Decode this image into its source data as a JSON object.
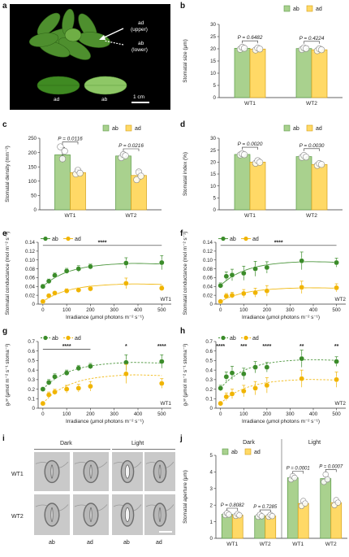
{
  "colors": {
    "ab": "#a9d18e",
    "ab_edge": "#5a9a46",
    "ad": "#ffd966",
    "ad_edge": "#d4a017",
    "line_ab": "#3b8c2a",
    "line_ad": "#f0b400",
    "text": "#222222"
  },
  "panel_letters": {
    "a": "a",
    "b": "b",
    "c": "c",
    "d": "d",
    "e": "e",
    "f": "f",
    "g": "g",
    "h": "h",
    "i": "i",
    "j": "j"
  },
  "photo": {
    "upper_label": "ad\n(upper)",
    "upper_l1": "ad",
    "upper_l2": "(upper)",
    "lower_l1": "ab",
    "lower_l2": "(lower)",
    "leaf_left": "ad",
    "leaf_right": "ab",
    "scale": "1 cm"
  },
  "micrographs": {
    "dark": "Dark",
    "light": "Light",
    "row1": "WT1",
    "row2": "WT2",
    "col_ab": "ab",
    "col_ad": "ad"
  },
  "chart_data": [
    {
      "id": "b",
      "type": "bar",
      "categories": [
        "WT1",
        "WT2"
      ],
      "series": [
        {
          "name": "ab",
          "values": [
            20.2,
            20.1
          ]
        },
        {
          "name": "ad",
          "values": [
            19.9,
            19.6
          ]
        }
      ],
      "errors": [
        [
          0.4,
          0.3
        ],
        [
          0.4,
          0.4
        ]
      ],
      "points": [
        [
          [
            19.8,
            20.6,
            20.2
          ],
          [
            19.7,
            20.4,
            20.1
          ]
        ],
        [
          [
            19.5,
            20.3,
            19.9
          ],
          [
            19.2,
            20.0,
            19.6
          ]
        ]
      ],
      "ylabel": "Stomatal size (μm)",
      "ylim": [
        0,
        30
      ],
      "yticks": [
        0,
        5,
        10,
        15,
        20,
        25,
        30
      ],
      "pvalues": [
        "P = 0.6482",
        "P = 0.4224"
      ],
      "legend": [
        "ab",
        "ad"
      ]
    },
    {
      "id": "c",
      "type": "bar",
      "categories": [
        "WT1",
        "WT2"
      ],
      "series": [
        {
          "name": "ab",
          "values": [
            192,
            188
          ]
        },
        {
          "name": "ad",
          "values": [
            130,
            120
          ]
        }
      ],
      "errors": [
        [
          26,
          8
        ],
        [
          10,
          18
        ]
      ],
      "points": [
        [
          [
            220,
            178,
            205
          ],
          [
            182,
            193,
            189
          ]
        ],
        [
          [
            125,
            138,
            128
          ],
          [
            105,
            132,
            118
          ]
        ]
      ],
      "ylabel": "Stomatal density (mm⁻²)",
      "ylim": [
        0,
        250
      ],
      "yticks": [
        0,
        50,
        100,
        150,
        200,
        250
      ],
      "pvalues": [
        "P = 0.0116",
        "P = 0.0216"
      ],
      "legend": [
        "ab",
        "ad"
      ]
    },
    {
      "id": "d",
      "type": "bar",
      "categories": [
        "WT1",
        "WT2"
      ],
      "series": [
        {
          "name": "ab",
          "values": [
            23.2,
            22.3
          ]
        },
        {
          "name": "ad",
          "values": [
            20.0,
            19.0
          ]
        }
      ],
      "errors": [
        [
          0.3,
          0.6
        ],
        [
          0.8,
          0.5
        ]
      ],
      "points": [
        [
          [
            23.0,
            23.5,
            23.1
          ],
          [
            22.0,
            22.8,
            22.1
          ]
        ],
        [
          [
            19.5,
            20.6,
            19.9
          ],
          [
            18.6,
            19.4,
            19.0
          ]
        ]
      ],
      "ylabel": "Stomatal index (%)",
      "ylim": [
        0,
        30
      ],
      "yticks": [
        0,
        5,
        10,
        15,
        20,
        25,
        30
      ],
      "pvalues": [
        "P = 0.0020",
        "P = 0.0030"
      ],
      "legend": [
        "ab",
        "ad"
      ]
    },
    {
      "id": "e",
      "type": "scatter",
      "x": [
        0,
        25,
        50,
        100,
        150,
        200,
        350,
        500
      ],
      "series": [
        {
          "name": "ab",
          "values": [
            0.04,
            0.052,
            0.065,
            0.075,
            0.08,
            0.085,
            0.093,
            0.094
          ],
          "errors": [
            0.005,
            0.005,
            0.006,
            0.006,
            0.007,
            0.006,
            0.012,
            0.016
          ]
        },
        {
          "name": "ad",
          "values": [
            0.006,
            0.019,
            0.025,
            0.03,
            0.032,
            0.035,
            0.047,
            0.036
          ],
          "errors": [
            0.003,
            0.004,
            0.004,
            0.005,
            0.005,
            0.006,
            0.012,
            0.006
          ]
        }
      ],
      "ylabel": "Stomatal conductance (mol m⁻² s⁻¹)",
      "xlabel": "Irradiance (μmol photons m⁻² s⁻¹)",
      "ylim": [
        0,
        0.14
      ],
      "yticks": [
        0,
        0.02,
        0.04,
        0.06,
        0.08,
        0.1,
        0.12,
        0.14
      ],
      "ytick_labels": [
        "0",
        "0.02",
        "0.04",
        "0.06",
        "0.08",
        "0.10",
        "0.12",
        "0.14"
      ],
      "xlim": [
        -20,
        540
      ],
      "xticks": [
        0,
        100,
        200,
        300,
        400,
        500
      ],
      "sig": [
        {
          "x1": 0,
          "x2": 500,
          "label": "****",
          "y": 0.133
        }
      ],
      "genotype": "WT1",
      "legend": [
        "ab",
        "ad"
      ],
      "dashed": false
    },
    {
      "id": "f",
      "type": "scatter",
      "x": [
        0,
        25,
        50,
        100,
        150,
        200,
        350,
        500
      ],
      "series": [
        {
          "name": "ab",
          "values": [
            0.042,
            0.063,
            0.066,
            0.07,
            0.08,
            0.083,
            0.098,
            0.094
          ],
          "errors": [
            0.006,
            0.01,
            0.013,
            0.016,
            0.017,
            0.013,
            0.02,
            0.01
          ]
        },
        {
          "name": "ad",
          "values": [
            0.006,
            0.018,
            0.02,
            0.024,
            0.026,
            0.03,
            0.038,
            0.037
          ],
          "errors": [
            0.003,
            0.006,
            0.007,
            0.009,
            0.01,
            0.012,
            0.014,
            0.009
          ]
        }
      ],
      "ylabel": "Stomatal conductance (mol m⁻² s⁻¹)",
      "xlabel": "Irradiance (μmol photons m⁻² s⁻¹)",
      "ylim": [
        0,
        0.14
      ],
      "yticks": [
        0,
        0.02,
        0.04,
        0.06,
        0.08,
        0.1,
        0.12,
        0.14
      ],
      "ytick_labels": [
        "0",
        "0.02",
        "0.04",
        "0.06",
        "0.08",
        "0.10",
        "0.12",
        "0.14"
      ],
      "xlim": [
        -20,
        540
      ],
      "xticks": [
        0,
        100,
        200,
        300,
        400,
        500
      ],
      "sig": [
        {
          "x1": 0,
          "x2": 500,
          "label": "****",
          "y": 0.133
        }
      ],
      "genotype": "WT2",
      "legend": [
        "ab",
        "ad"
      ],
      "dashed": false
    },
    {
      "id": "g",
      "type": "scatter",
      "x": [
        0,
        25,
        50,
        100,
        150,
        200,
        350,
        500
      ],
      "series": [
        {
          "name": "ab",
          "values": [
            0.2,
            0.27,
            0.33,
            0.37,
            0.42,
            0.44,
            0.48,
            0.49
          ],
          "errors": [
            0.02,
            0.03,
            0.03,
            0.03,
            0.03,
            0.03,
            0.08,
            0.07
          ]
        },
        {
          "name": "ad",
          "values": [
            0.05,
            0.14,
            0.17,
            0.2,
            0.21,
            0.23,
            0.36,
            0.26
          ],
          "errors": [
            0.02,
            0.03,
            0.03,
            0.04,
            0.04,
            0.05,
            0.1,
            0.05
          ]
        }
      ],
      "ylabel": "gₛʷ (μmol m⁻² s⁻¹ stoma⁻¹)",
      "xlabel": "Irradiance (μmol photons m⁻² s⁻¹)",
      "ylim": [
        0,
        0.7
      ],
      "yticks": [
        0,
        0.1,
        0.2,
        0.3,
        0.4,
        0.5,
        0.6,
        0.7
      ],
      "ytick_labels": [
        "0",
        "0.1",
        "0.2",
        "0.3",
        "0.4",
        "0.5",
        "0.6",
        "0.7"
      ],
      "xlim": [
        -20,
        540
      ],
      "xticks": [
        0,
        100,
        200,
        300,
        400,
        500
      ],
      "sig": [
        {
          "x1": 0,
          "x2": 200,
          "label": "****",
          "y": 0.62
        },
        {
          "x1": 350,
          "x2": 350,
          "label": "*",
          "y": 0.62
        },
        {
          "x1": 500,
          "x2": 500,
          "label": "****",
          "y": 0.62
        }
      ],
      "genotype": "WT1",
      "legend": [
        "ab",
        "ad"
      ],
      "dashed": true
    },
    {
      "id": "h",
      "type": "scatter",
      "x": [
        0,
        25,
        50,
        100,
        150,
        200,
        350,
        500
      ],
      "series": [
        {
          "name": "ab",
          "values": [
            0.21,
            0.33,
            0.37,
            0.36,
            0.43,
            0.43,
            0.52,
            0.49
          ],
          "errors": [
            0.03,
            0.05,
            0.07,
            0.06,
            0.06,
            0.05,
            0.09,
            0.05
          ]
        },
        {
          "name": "ad",
          "values": [
            0.05,
            0.12,
            0.15,
            0.18,
            0.21,
            0.24,
            0.31,
            0.3
          ],
          "errors": [
            0.02,
            0.04,
            0.05,
            0.06,
            0.07,
            0.08,
            0.09,
            0.08
          ]
        }
      ],
      "ylabel": "gₛʷ (μmol m⁻² s⁻¹ stoma⁻¹)",
      "xlabel": "Irradiance (μmol photons m⁻² s⁻¹)",
      "ylim": [
        0,
        0.7
      ],
      "yticks": [
        0,
        0.1,
        0.2,
        0.3,
        0.4,
        0.5,
        0.6,
        0.7
      ],
      "ytick_labels": [
        "0",
        "0.1",
        "0.2",
        "0.3",
        "0.4",
        "0.5",
        "0.6",
        "0.7"
      ],
      "xlim": [
        -20,
        540
      ],
      "xticks": [
        0,
        100,
        200,
        300,
        400,
        500
      ],
      "sig": [
        {
          "x1": 0,
          "x2": 0,
          "label": "****",
          "y": 0.62
        },
        {
          "x1": 100,
          "x2": 100,
          "label": "***",
          "y": 0.62
        },
        {
          "x1": 200,
          "x2": 200,
          "label": "****",
          "y": 0.62
        },
        {
          "x1": 350,
          "x2": 350,
          "label": "**",
          "y": 0.62
        },
        {
          "x1": 500,
          "x2": 500,
          "label": "**",
          "y": 0.62
        }
      ],
      "genotype": "WT2",
      "legend": [
        "ab",
        "ad"
      ],
      "dashed": true
    },
    {
      "id": "j",
      "type": "bar",
      "groups": [
        "Dark",
        "Light"
      ],
      "categories": [
        "WT1",
        "WT2",
        "WT1",
        "WT2"
      ],
      "series": [
        {
          "name": "ab",
          "values": [
            1.45,
            1.35,
            3.65,
            3.6
          ]
        },
        {
          "name": "ad",
          "values": [
            1.4,
            1.35,
            2.1,
            2.15
          ]
        }
      ],
      "errors": [
        [
          0.06,
          0.06,
          0.08,
          0.12
        ],
        [
          0.06,
          0.06,
          0.1,
          0.1
        ]
      ],
      "points": [
        [
          [
            1.4,
            1.52,
            1.43
          ],
          [
            1.3,
            1.42,
            1.33
          ],
          [
            3.55,
            3.75,
            3.65
          ],
          [
            3.4,
            3.85,
            3.55
          ]
        ],
        [
          [
            1.35,
            1.46,
            1.39
          ],
          [
            1.3,
            1.41,
            1.34
          ],
          [
            1.95,
            2.25,
            2.1
          ],
          [
            2.0,
            2.3,
            2.15
          ]
        ]
      ],
      "ylabel": "Stomatal aperture (μm)",
      "ylim": [
        0,
        5
      ],
      "yticks": [
        0,
        1,
        2,
        3,
        4,
        5
      ],
      "pvalues": [
        "P = 0.8082",
        "P = 0.7285",
        "P = 0.0001",
        "P = 0.0007"
      ],
      "legend": [
        "ab",
        "ad"
      ]
    }
  ]
}
